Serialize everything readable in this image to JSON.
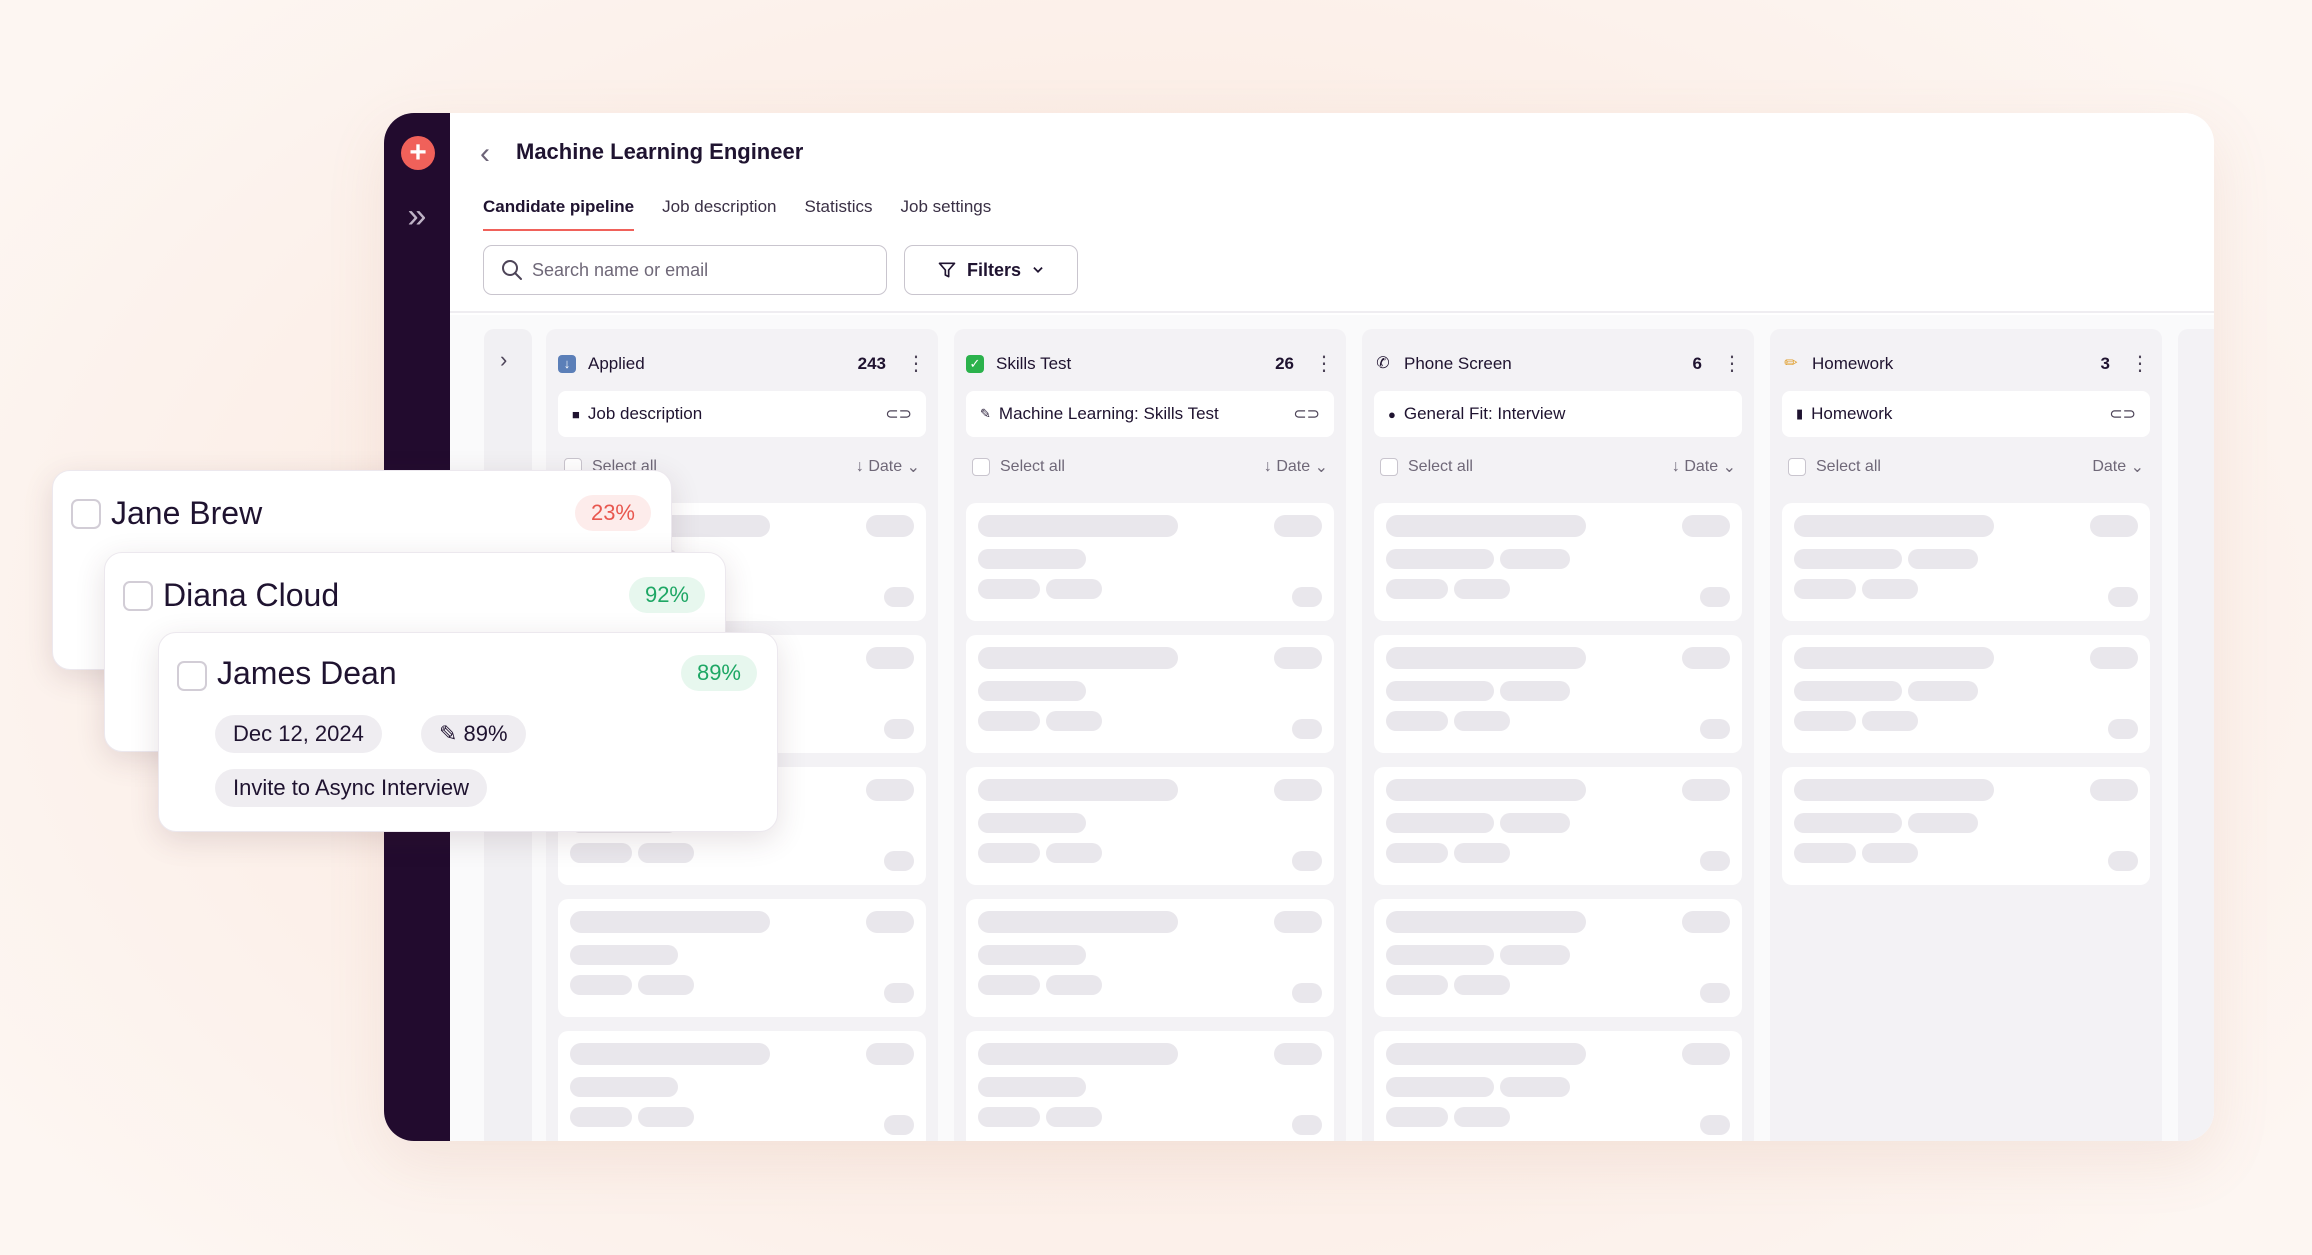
{
  "header": {
    "title": "Machine Learning Engineer",
    "tabs": [
      {
        "label": "Candidate pipeline"
      },
      {
        "label": "Job description"
      },
      {
        "label": "Statistics"
      },
      {
        "label": "Job settings"
      }
    ],
    "search_placeholder": "Search name or email",
    "filters_label": "Filters"
  },
  "stages": [
    {
      "name": "Applied",
      "count": "243",
      "task": "Job description",
      "select_all": "Select all",
      "sort": "↓ Date",
      "icon": "inbox-icon",
      "color": "#5b7fb8"
    },
    {
      "name": "Skills Test",
      "count": "26",
      "task": "Machine Learning: Skills Test",
      "select_all": "Select all",
      "sort": "↓ Date",
      "icon": "check-icon",
      "color": "#2bb24c"
    },
    {
      "name": "Phone Screen",
      "count": "6",
      "task": "General Fit: Interview",
      "select_all": "Select all",
      "sort": "↓ Date",
      "icon": "phone-icon",
      "color": "#1f1330"
    },
    {
      "name": "Homework",
      "count": "3",
      "task": "Homework",
      "select_all": "Select all",
      "sort": "Date",
      "icon": "pencil-icon",
      "color": "#e0a030"
    }
  ],
  "candidates": [
    {
      "name": "Jane Brew",
      "score": "23%"
    },
    {
      "name": "Diana Cloud",
      "score": "92%"
    },
    {
      "name": "James Dean",
      "score": "89%",
      "date": "Dec 12, 2024",
      "test_score": "89%",
      "action": "Invite to Async Interview"
    }
  ]
}
